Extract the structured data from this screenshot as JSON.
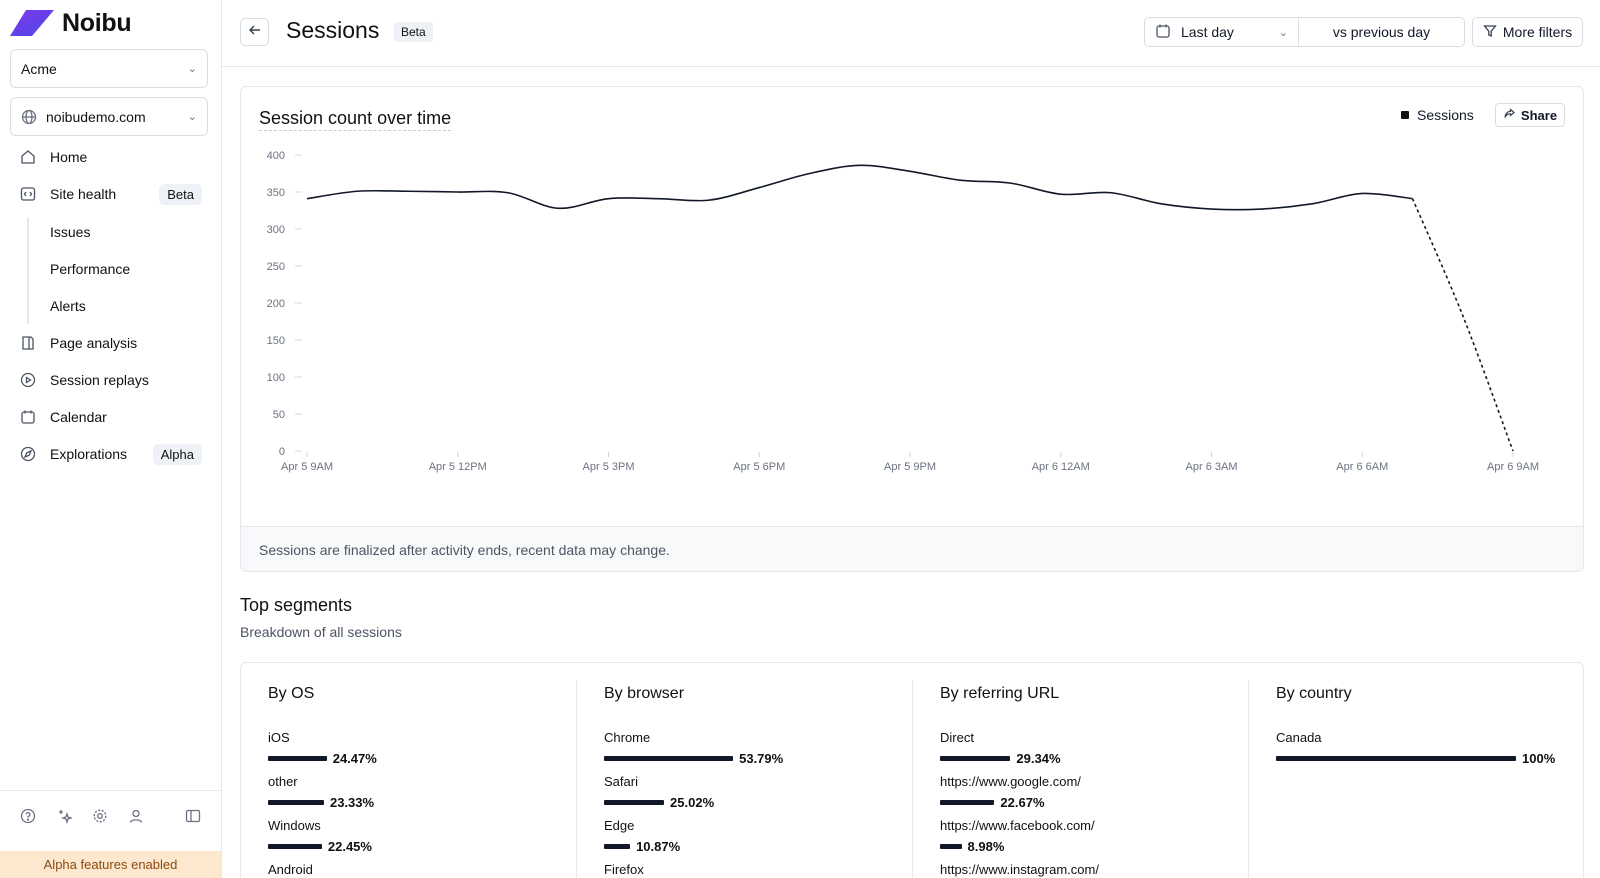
{
  "sidebar": {
    "logo_text": "Noibu",
    "org_select": "Acme",
    "site_select": "noibudemo.com",
    "nav": {
      "home": "Home",
      "site_health": "Site health",
      "site_health_badge": "Beta",
      "issues": "Issues",
      "performance": "Performance",
      "alerts": "Alerts",
      "page_analysis": "Page analysis",
      "session_replays": "Session replays",
      "calendar": "Calendar",
      "explorations": "Explorations",
      "explorations_badge": "Alpha"
    },
    "footer_banner": "Alpha features enabled"
  },
  "header": {
    "title": "Sessions",
    "badge": "Beta",
    "date_range": "Last day",
    "compare": "vs previous day",
    "filters": "More filters"
  },
  "chart_card": {
    "title": "Session count over time",
    "legend": "Sessions",
    "share": "Share",
    "note": "Sessions are finalized after activity ends, recent data may change."
  },
  "chart_data": {
    "type": "line",
    "title": "Session count over time",
    "xlabel": "",
    "ylabel": "",
    "x_ticks": [
      "Apr 5 9AM",
      "Apr 5 12PM",
      "Apr 5 3PM",
      "Apr 5 6PM",
      "Apr 5 9PM",
      "Apr 6 12AM",
      "Apr 6 3AM",
      "Apr 6 6AM",
      "Apr 6 9AM"
    ],
    "y_ticks": [
      0,
      50,
      100,
      150,
      200,
      250,
      300,
      350,
      400
    ],
    "ylim": [
      0,
      400
    ],
    "x_unit": "hours since Apr 5 9AM",
    "series": [
      {
        "name": "Sessions",
        "x": [
          0,
          1,
          2,
          3,
          4,
          5,
          6,
          7,
          8,
          9,
          10,
          11,
          12,
          13,
          14,
          15,
          16,
          17,
          18,
          19,
          20,
          21,
          22,
          23,
          24
        ],
        "values": [
          341,
          351,
          351,
          350,
          349,
          328,
          341,
          341,
          339,
          356,
          375,
          386,
          378,
          366,
          362,
          347,
          349,
          334,
          327,
          327,
          334,
          348,
          341,
          183,
          0
        ],
        "provisional_from_x": 22.9
      }
    ],
    "grid": false,
    "legend_position": "top-right"
  },
  "segments": {
    "title": "Top segments",
    "subtitle": "Breakdown of all sessions",
    "columns": [
      {
        "title": "By OS",
        "rows": [
          {
            "label": "iOS",
            "pct": "24.47%",
            "value": 24.47
          },
          {
            "label": "other",
            "pct": "23.33%",
            "value": 23.33
          },
          {
            "label": "Windows",
            "pct": "22.45%",
            "value": 22.45
          },
          {
            "label": "Android",
            "pct": "",
            "value": 0
          }
        ]
      },
      {
        "title": "By browser",
        "rows": [
          {
            "label": "Chrome",
            "pct": "53.79%",
            "value": 53.79
          },
          {
            "label": "Safari",
            "pct": "25.02%",
            "value": 25.02
          },
          {
            "label": "Edge",
            "pct": "10.87%",
            "value": 10.87
          },
          {
            "label": "Firefox",
            "pct": "",
            "value": 0
          }
        ]
      },
      {
        "title": "By referring URL",
        "rows": [
          {
            "label": "Direct",
            "pct": "29.34%",
            "value": 29.34
          },
          {
            "label": "https://www.google.com/",
            "pct": "22.67%",
            "value": 22.67
          },
          {
            "label": "https://www.facebook.com/",
            "pct": "8.98%",
            "value": 8.98
          },
          {
            "label": "https://www.instagram.com/",
            "pct": "",
            "value": 0
          }
        ]
      },
      {
        "title": "By country",
        "rows": [
          {
            "label": "Canada",
            "pct": "100%",
            "value": 100
          }
        ]
      }
    ]
  }
}
